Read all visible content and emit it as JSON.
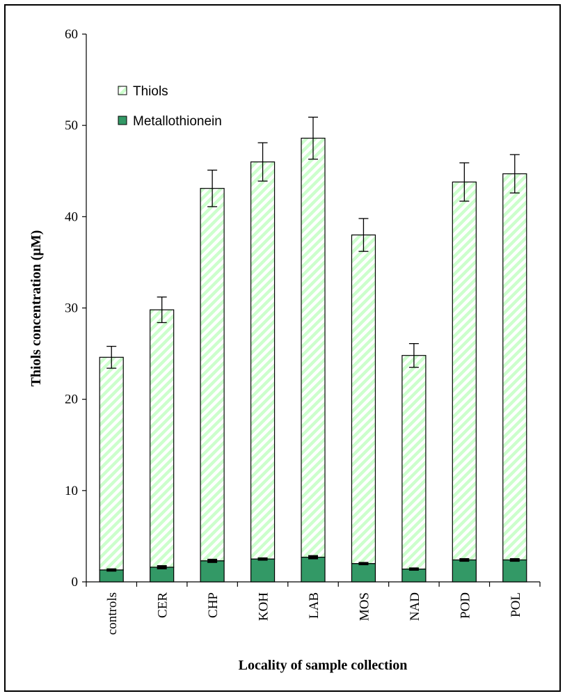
{
  "chart_data": {
    "type": "bar",
    "stacked": true,
    "categories": [
      "controls",
      "CER",
      "CHP",
      "KOH",
      "LAB",
      "MOS",
      "NAD",
      "POD",
      "POL"
    ],
    "series": [
      {
        "name": "Metallothionein",
        "values": [
          1.3,
          1.6,
          2.3,
          2.5,
          2.7,
          2.0,
          1.4,
          2.4,
          2.4
        ],
        "errors": [
          0.1,
          0.15,
          0.15,
          0.1,
          0.15,
          0.1,
          0.1,
          0.12,
          0.12
        ],
        "color": "#339966",
        "pattern": "solid"
      },
      {
        "name": "Thiols",
        "values": [
          24.6,
          29.8,
          43.1,
          46.0,
          48.6,
          38.0,
          24.8,
          43.8,
          44.7
        ],
        "errors": [
          1.2,
          1.4,
          2.0,
          2.1,
          2.3,
          1.8,
          1.3,
          2.1,
          2.1
        ],
        "color": "#ccffcc",
        "pattern": "diagonal-hatch"
      }
    ],
    "xlabel": "Locality of sample collection",
    "ylabel": "Thiols concentration (µM)",
    "ylim": [
      0,
      60
    ],
    "yticks": [
      0,
      10,
      20,
      30,
      40,
      50,
      60
    ],
    "grid": false,
    "legend": {
      "placement": "top-left",
      "entries": [
        "Thiols",
        "Metallothionein"
      ]
    }
  }
}
